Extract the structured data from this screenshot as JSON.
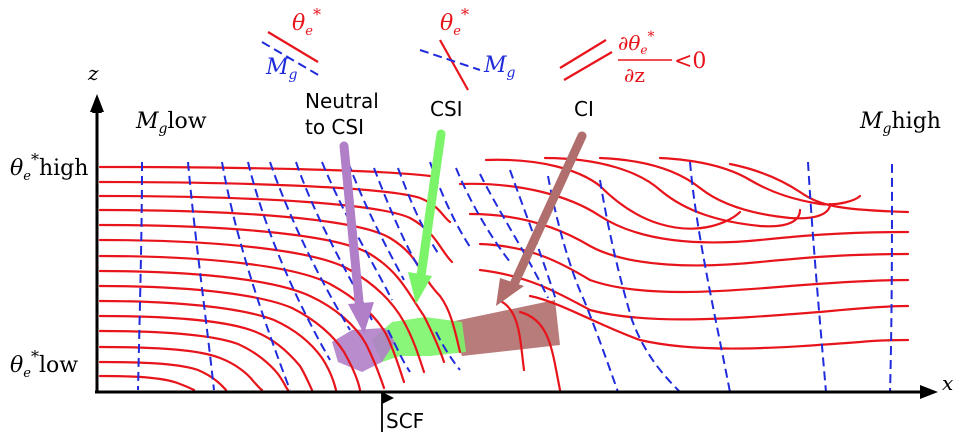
{
  "labels": {
    "z_axis": "z",
    "x_axis": "x",
    "theta_symbol": "θ",
    "theta_sub": "e",
    "theta_sup": "*",
    "theta_high_suffix": "high",
    "theta_low_suffix": "low",
    "mg_symbol": "M",
    "mg_sub": "g",
    "mg_low_suffix": "low",
    "mg_high_suffix": "high",
    "scf": "SCF"
  },
  "legend": {
    "neutral": {
      "theta": "θ",
      "theta_sub": "e",
      "theta_sup": "*",
      "mg": "M",
      "mg_sub": "g",
      "caption_line1": "Neutral",
      "caption_line2": "to CSI"
    },
    "csi": {
      "theta": "θ",
      "theta_sub": "e",
      "theta_sup": "*",
      "mg": "M",
      "mg_sub": "g",
      "caption": "CSI"
    },
    "ci": {
      "numerator_d": "∂θ",
      "numerator_sub": "e",
      "numerator_sup": "*",
      "denominator": "∂z",
      "relation": "<0",
      "caption": "CI"
    }
  },
  "colors": {
    "theta_lines": "#e8141b",
    "mg_lines": "#1f2bdc",
    "neutral_region": "#b07fc8",
    "csi_region": "#7cf46a",
    "ci_region": "#b06e6c",
    "axes": "#000000"
  }
}
